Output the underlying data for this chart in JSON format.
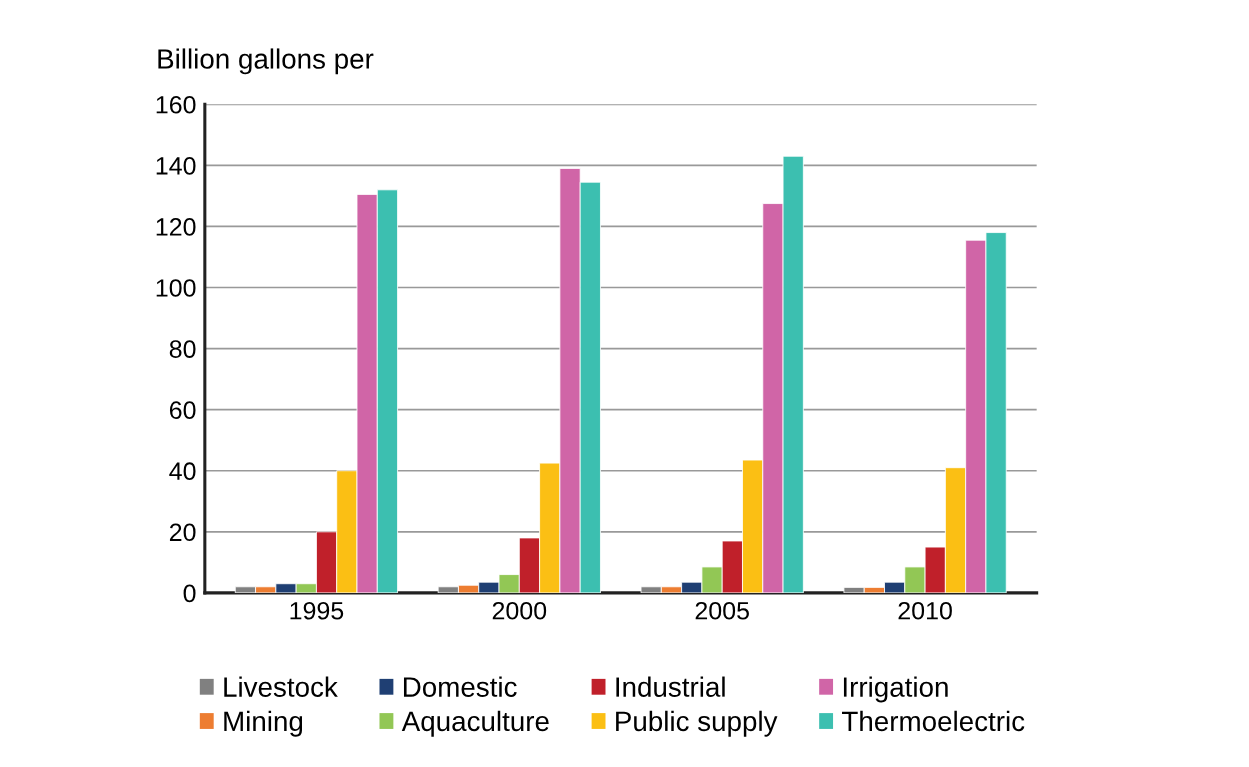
{
  "chart_data": {
    "type": "bar",
    "ylabel": "Billion gallons per",
    "categories": [
      "1995",
      "2000",
      "2005",
      "2010"
    ],
    "series": [
      {
        "name": "Livestock",
        "color": "#808080",
        "values": [
          2,
          2,
          2,
          1.8
        ]
      },
      {
        "name": "Mining",
        "color": "#ed7d31",
        "values": [
          2,
          2.5,
          2,
          1.8
        ]
      },
      {
        "name": "Domestic",
        "color": "#1f3f73",
        "values": [
          3,
          3.5,
          3.5,
          3.5
        ]
      },
      {
        "name": "Aquaculture",
        "color": "#92c755",
        "values": [
          3,
          6,
          8.5,
          8.5
        ]
      },
      {
        "name": "Industrial",
        "color": "#c0202a",
        "values": [
          20,
          18,
          17,
          15
        ]
      },
      {
        "name": "Public supply",
        "color": "#fbbf14",
        "values": [
          40,
          42.5,
          43.5,
          41
        ]
      },
      {
        "name": "Irrigation",
        "color": "#d065a7",
        "values": [
          130.5,
          139,
          127.5,
          115.5
        ]
      },
      {
        "name": "Thermoelectric",
        "color": "#3cbfb0",
        "values": [
          132,
          134.5,
          143,
          118
        ]
      }
    ],
    "ylim": [
      0,
      160
    ],
    "yticks": [
      0,
      20,
      40,
      60,
      80,
      100,
      120,
      140,
      160
    ],
    "grid": "y",
    "legend": "bottom"
  }
}
